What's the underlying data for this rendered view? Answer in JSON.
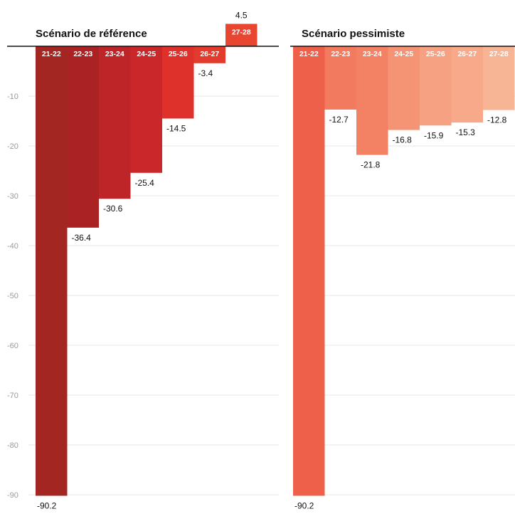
{
  "chart_data": {
    "type": "bar",
    "ylim": [
      -92,
      0
    ],
    "y_ticks": [
      -10,
      -20,
      -30,
      -40,
      -50,
      -60,
      -70,
      -80,
      -90
    ],
    "grid": true,
    "panels": [
      {
        "title": "Scénario de référence",
        "categories": [
          "21-22",
          "22-23",
          "23-24",
          "24-25",
          "25-26",
          "26-27",
          "27-28"
        ],
        "values": [
          -90.2,
          -36.4,
          -30.6,
          -25.4,
          -14.5,
          -3.4,
          4.5
        ],
        "value_labels": [
          "-90.2",
          "-36.4",
          "-30.6",
          "-25.4",
          "-14.5",
          "-3.4",
          "4.5"
        ],
        "colors": [
          "#a32623",
          "#ab2225",
          "#be2529",
          "#c9272a",
          "#df312c",
          "#e33a2e",
          "#e84631"
        ]
      },
      {
        "title": "Scénario pessimiste",
        "categories": [
          "21-22",
          "22-23",
          "23-24",
          "24-25",
          "25-26",
          "26-27",
          "27-28"
        ],
        "values": [
          -90.2,
          -12.7,
          -21.8,
          -16.8,
          -15.9,
          -15.3,
          -12.8
        ],
        "value_labels": [
          "-90.2",
          "-12.7",
          "-21.8",
          "-16.8",
          "-15.9",
          "-15.3",
          "-12.8"
        ],
        "colors": [
          "#ee6049",
          "#f17a5f",
          "#f38163",
          "#f59475",
          "#f6a282",
          "#f7a98a",
          "#f8b596"
        ]
      }
    ]
  }
}
